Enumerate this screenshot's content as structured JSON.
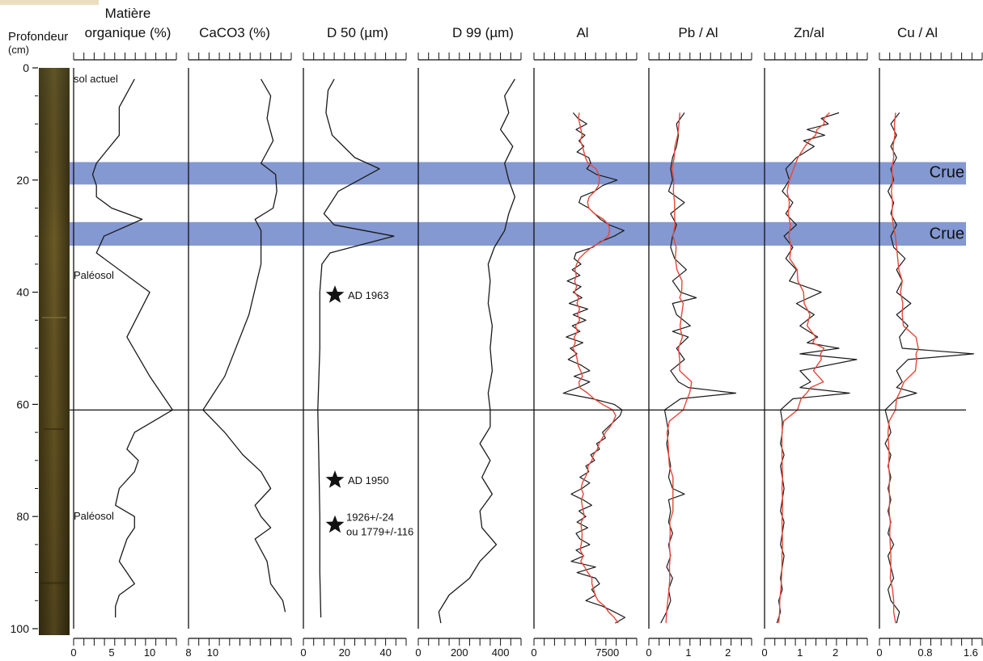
{
  "colors": {
    "profile": "#1a1a1a",
    "smooth": "#e8473a",
    "band": "#6f86c9",
    "core": "#5c4a1e"
  },
  "y_axis": {
    "label_line1": "Profondeur",
    "label_line2": "(cm)",
    "range": [
      0,
      100
    ],
    "ticks": [
      "0",
      "20",
      "40",
      "60",
      "80",
      "100"
    ],
    "tick_values": [
      0,
      20,
      40,
      60,
      80,
      100
    ]
  },
  "annotations": {
    "sol_actuel": {
      "text": "sol actuel",
      "depth": 2
    },
    "paleosol_1": {
      "text": "Paléosol",
      "depth": 37
    },
    "paleosol_2": {
      "text": "Paléosol",
      "depth": 80
    },
    "crue_1": {
      "text": "Crue",
      "depth": 18.5
    },
    "crue_2": {
      "text": "Crue",
      "depth": 29.5
    },
    "date_1": {
      "text": "AD 1963",
      "depth": 40.5
    },
    "date_2": {
      "text": "AD 1950",
      "depth": 73.5
    },
    "date_3a": {
      "text": "1926+/-24",
      "depth": 80.5
    },
    "date_3b": {
      "text": "ou 1779+/-116",
      "depth": 82.5
    }
  },
  "chart_data": {
    "type": "line",
    "orientation": "depth-profile",
    "y_label": "Profondeur (cm)",
    "y_range": [
      0,
      100
    ],
    "flood_bands": [
      {
        "label": "Crue",
        "from": 16.8,
        "to": 20.8
      },
      {
        "label": "Crue",
        "from": 27.5,
        "to": 31.7
      }
    ],
    "boundary_depth": 61,
    "panels": [
      {
        "title_line1": "Matière",
        "title_line2": "organique (%)",
        "xlim": [
          0,
          13.5
        ],
        "ticks": [
          "0",
          "5",
          "10"
        ],
        "tick_values": [
          0,
          5,
          10
        ],
        "depth": [
          2,
          7,
          12,
          17,
          19,
          21,
          23,
          25,
          27,
          30,
          33,
          40,
          48,
          55,
          61,
          65,
          68,
          70,
          72,
          75,
          78,
          80,
          82,
          84,
          88,
          90,
          92,
          94,
          96,
          98
        ],
        "values": [
          8,
          6,
          6,
          3,
          2.5,
          3,
          3,
          5,
          9,
          4,
          3,
          10,
          7,
          10,
          13,
          8,
          7,
          8.5,
          8,
          6,
          5.5,
          8,
          8,
          7,
          6,
          7,
          8,
          6,
          5.5,
          5.5
        ]
      },
      {
        "title_line1": "CaCO3 (%)",
        "xlim": [
          8,
          16.5
        ],
        "ticks": [
          "8",
          "10"
        ],
        "tick_values": [
          8,
          10
        ],
        "depth": [
          2,
          5,
          9,
          13,
          17,
          19,
          22,
          25,
          27,
          29,
          35,
          44,
          55,
          61,
          65,
          69,
          72,
          75,
          78,
          80,
          82,
          84,
          88,
          92,
          95,
          97
        ],
        "values": [
          14,
          14.8,
          14.5,
          15,
          14,
          15.2,
          15.3,
          15,
          13.5,
          14,
          14,
          13,
          11,
          9.2,
          11,
          12.5,
          14,
          14.8,
          13.5,
          14,
          14.8,
          13.5,
          14.5,
          14.8,
          15.8,
          16
        ]
      },
      {
        "title_line1": "D 50 (µm)",
        "xlim": [
          0,
          50
        ],
        "ticks": [
          "0",
          "20",
          "40"
        ],
        "tick_values": [
          0,
          20,
          40
        ],
        "depth": [
          2,
          4,
          8,
          12,
          16,
          18,
          20,
          22,
          26,
          28,
          30,
          33,
          35,
          40,
          50,
          61,
          70,
          80,
          90,
          98
        ],
        "values": [
          15,
          12,
          11,
          14,
          25,
          37,
          27,
          17,
          10,
          15,
          44,
          13,
          9,
          8,
          8,
          7,
          7.5,
          8,
          8,
          8.5
        ]
      },
      {
        "title_line1": "D 99 (µm)",
        "xlim": [
          0,
          500
        ],
        "ticks": [
          "0",
          "200",
          "400"
        ],
        "tick_values": [
          0,
          200,
          400
        ],
        "depth": [
          2,
          5,
          8,
          11,
          14,
          17,
          20,
          23,
          26,
          29,
          32,
          35,
          38,
          42,
          46,
          50,
          54,
          58,
          61,
          64,
          67,
          70,
          73,
          76,
          79,
          82,
          85,
          88,
          91,
          94,
          97,
          99
        ],
        "values": [
          470,
          420,
          440,
          400,
          460,
          420,
          440,
          470,
          440,
          420,
          370,
          340,
          350,
          340,
          360,
          350,
          360,
          340,
          350,
          350,
          300,
          350,
          310,
          360,
          300,
          310,
          380,
          300,
          250,
          150,
          100,
          110
        ]
      },
      {
        "title_line1": "Al",
        "xlim": [
          0,
          10500
        ],
        "ticks": [
          "0",
          "7500"
        ],
        "tick_values": [
          0,
          7500
        ],
        "depth": [
          8,
          9,
          10,
          11,
          12,
          13,
          14,
          15,
          16,
          17,
          18,
          19,
          20,
          21,
          22,
          23,
          24,
          25,
          26,
          27,
          28,
          29,
          30,
          31,
          32,
          33,
          34,
          35,
          36,
          37,
          38,
          39,
          40,
          41,
          42,
          43,
          44,
          45,
          46,
          47,
          48,
          49,
          50,
          51,
          52,
          53,
          54,
          55,
          56,
          57,
          58,
          59,
          60,
          61,
          62,
          63,
          64,
          65,
          66,
          67,
          68,
          69,
          70,
          71,
          72,
          73,
          74,
          75,
          76,
          77,
          78,
          79,
          80,
          81,
          82,
          83,
          84,
          85,
          86,
          87,
          88,
          89,
          90,
          91,
          92,
          93,
          94,
          95,
          96,
          97,
          98,
          99
        ],
        "values": [
          4000,
          4500,
          5400,
          4300,
          5200,
          4600,
          5100,
          4400,
          5600,
          5800,
          5400,
          6400,
          8500,
          7000,
          6200,
          4800,
          4600,
          5600,
          6200,
          6800,
          7700,
          9200,
          8200,
          6800,
          6000,
          4300,
          4100,
          4800,
          3900,
          4700,
          3400,
          4800,
          4000,
          4900,
          3600,
          5500,
          4000,
          5300,
          3900,
          4700,
          3300,
          5000,
          3700,
          4400,
          3500,
          4800,
          5700,
          4100,
          5700,
          4500,
          3000,
          6000,
          8200,
          9000,
          8800,
          8200,
          7600,
          7000,
          7300,
          6400,
          6700,
          5800,
          6200,
          5300,
          5600,
          4700,
          5700,
          4900,
          3800,
          5000,
          5900,
          4600,
          5300,
          4400,
          5500,
          4300,
          4700,
          5700,
          4300,
          5100,
          3800,
          6300,
          4400,
          6300,
          6700,
          5900,
          6300,
          5300,
          7000,
          8200,
          9300,
          8300
        ]
      },
      {
        "title_line1": "Pb / Al",
        "xlim": [
          0,
          2.6
        ],
        "ticks": [
          "0",
          "1",
          "2"
        ],
        "tick_values": [
          0,
          1,
          2
        ],
        "depth": [
          8,
          10,
          12,
          14,
          16,
          18,
          20,
          22,
          24,
          26,
          28,
          30,
          32,
          34,
          36,
          38,
          40,
          41,
          42,
          44,
          46,
          47,
          48,
          50,
          52,
          54,
          56,
          57,
          58,
          59,
          61,
          63,
          65,
          67,
          69,
          71,
          73,
          75,
          76,
          77,
          79,
          81,
          83,
          85,
          87,
          89,
          91,
          93,
          95,
          97,
          99
        ],
        "values": [
          0.9,
          0.7,
          0.75,
          0.7,
          0.6,
          0.55,
          0.6,
          0.5,
          0.9,
          0.55,
          0.7,
          0.6,
          0.55,
          0.65,
          0.95,
          0.6,
          0.8,
          1.2,
          0.6,
          0.7,
          1.05,
          0.6,
          1.0,
          0.7,
          0.9,
          0.55,
          0.75,
          1.0,
          2.2,
          0.8,
          0.4,
          0.45,
          0.5,
          0.45,
          0.5,
          0.55,
          0.5,
          0.6,
          0.9,
          0.5,
          0.55,
          0.5,
          0.6,
          0.5,
          0.55,
          0.45,
          0.6,
          0.5,
          0.55,
          0.45,
          0.3
        ]
      },
      {
        "title_line1": "Zn/al",
        "xlim": [
          0,
          2.9
        ],
        "ticks": [
          "0",
          "1",
          "2"
        ],
        "tick_values": [
          0,
          1,
          2
        ],
        "depth": [
          8,
          9,
          10,
          11,
          12,
          13,
          14,
          16,
          18,
          20,
          22,
          24,
          26,
          28,
          30,
          32,
          34,
          36,
          38,
          40,
          42,
          44,
          46,
          48,
          49,
          50,
          51,
          52,
          54,
          56,
          57,
          58,
          59,
          61,
          63,
          65,
          67,
          69,
          71,
          73,
          75,
          77,
          79,
          81,
          83,
          85,
          87,
          89,
          91,
          93,
          95,
          97,
          99
        ],
        "values": [
          2.1,
          1.6,
          1.8,
          1.2,
          1.7,
          1.1,
          1.4,
          0.9,
          0.6,
          0.7,
          0.5,
          0.8,
          0.6,
          0.9,
          0.55,
          0.8,
          0.6,
          0.9,
          0.7,
          1.6,
          0.9,
          1.4,
          1.0,
          1.5,
          1.2,
          2.1,
          1.0,
          2.6,
          1.0,
          1.3,
          1.0,
          2.4,
          0.8,
          0.45,
          0.5,
          0.5,
          0.45,
          0.55,
          0.45,
          0.5,
          0.55,
          0.5,
          0.45,
          0.55,
          0.5,
          0.45,
          0.55,
          0.5,
          0.45,
          0.5,
          0.4,
          0.45,
          0.35
        ]
      },
      {
        "title_line1": "Cu / Al",
        "xlim": [
          0,
          1.8
        ],
        "ticks": [
          "0",
          "0.8",
          "1.6"
        ],
        "tick_values": [
          0,
          0.8,
          1.6
        ],
        "depth": [
          8,
          10,
          12,
          14,
          16,
          18,
          20,
          22,
          24,
          26,
          28,
          30,
          32,
          34,
          36,
          38,
          40,
          42,
          44,
          46,
          48,
          50,
          51,
          52,
          54,
          56,
          57,
          58,
          59,
          61,
          63,
          65,
          67,
          69,
          71,
          73,
          75,
          77,
          79,
          81,
          83,
          85,
          87,
          89,
          91,
          93,
          95,
          97,
          99
        ],
        "values": [
          0.35,
          0.2,
          0.3,
          0.2,
          0.3,
          0.2,
          0.25,
          0.15,
          0.25,
          0.2,
          0.3,
          0.2,
          0.25,
          0.45,
          0.3,
          0.4,
          0.3,
          0.55,
          0.3,
          0.5,
          0.35,
          0.4,
          1.65,
          0.5,
          0.3,
          0.4,
          0.3,
          0.65,
          0.3,
          0.1,
          0.15,
          0.2,
          0.1,
          0.2,
          0.15,
          0.2,
          0.15,
          0.2,
          0.15,
          0.2,
          0.15,
          0.25,
          0.15,
          0.2,
          0.25,
          0.15,
          0.2,
          0.35,
          0.3
        ]
      }
    ]
  }
}
